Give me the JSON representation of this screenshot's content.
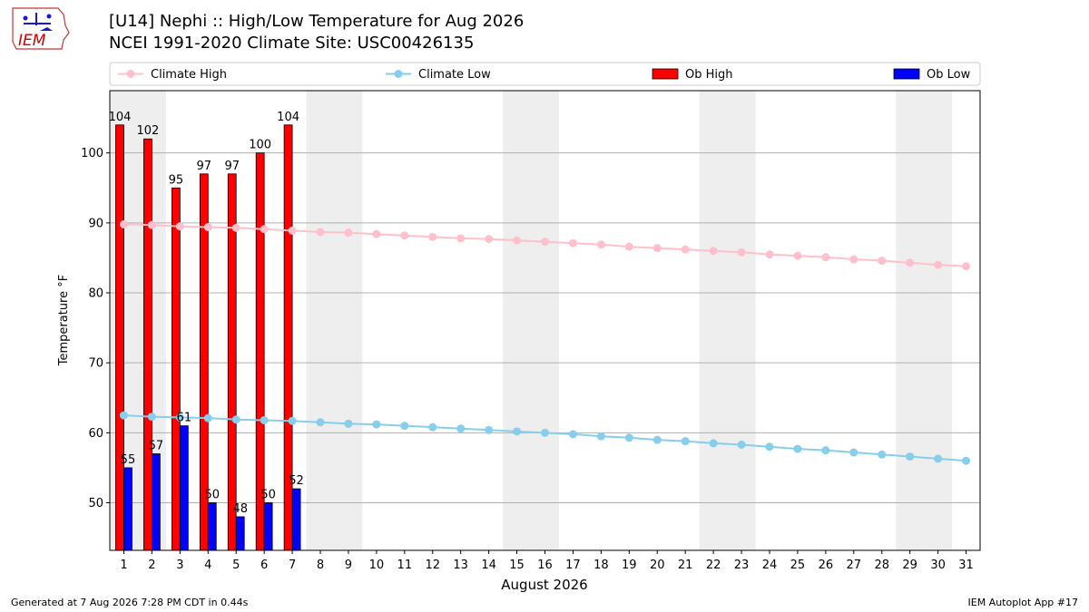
{
  "page": {
    "title_line1": "[U14] Nephi :: High/Low Temperature for Aug 2026",
    "title_line2": "NCEI 1991-2020 Climate Site: USC00426135",
    "footer_left": "Generated at 7 Aug 2026 7:28 PM CDT in 0.44s",
    "footer_right": "IEM Autoplot App #17",
    "logo_text": "IEM"
  },
  "chart_data": {
    "type": "bar",
    "xlabel": "August 2026",
    "ylabel": "Temperature °F",
    "x": [
      1,
      2,
      3,
      4,
      5,
      6,
      7,
      8,
      9,
      10,
      11,
      12,
      13,
      14,
      15,
      16,
      17,
      18,
      19,
      20,
      21,
      22,
      23,
      24,
      25,
      26,
      27,
      28,
      29,
      30,
      31
    ],
    "xlim": [
      0.5,
      31.5
    ],
    "ylim": [
      43.2,
      108.9
    ],
    "yticks": [
      50,
      60,
      70,
      80,
      90,
      100
    ],
    "grid": "horizontal",
    "weekend_shading_days": [
      1,
      2,
      8,
      9,
      15,
      16,
      22,
      23,
      29,
      30
    ],
    "legend_position": "top",
    "series": [
      {
        "name": "Climate High",
        "kind": "line",
        "color": "#ffc0cb",
        "values": [
          89.8,
          89.7,
          89.5,
          89.4,
          89.3,
          89.1,
          88.9,
          88.7,
          88.6,
          88.4,
          88.2,
          88.0,
          87.8,
          87.7,
          87.5,
          87.3,
          87.1,
          86.9,
          86.6,
          86.4,
          86.2,
          86.0,
          85.8,
          85.5,
          85.3,
          85.1,
          84.8,
          84.6,
          84.3,
          84.0,
          83.8
        ]
      },
      {
        "name": "Climate Low",
        "kind": "line",
        "color": "#87ceeb",
        "values": [
          62.5,
          62.3,
          62.2,
          62.1,
          61.9,
          61.8,
          61.7,
          61.5,
          61.3,
          61.2,
          61.0,
          60.8,
          60.6,
          60.4,
          60.2,
          60.0,
          59.8,
          59.5,
          59.3,
          59.0,
          58.8,
          58.5,
          58.3,
          58.0,
          57.7,
          57.5,
          57.2,
          56.9,
          56.6,
          56.3,
          56.0
        ]
      },
      {
        "name": "Ob High",
        "kind": "bar",
        "color": "#ff0000",
        "x": [
          1,
          2,
          3,
          4,
          5,
          6,
          7
        ],
        "values": [
          104,
          102,
          95,
          97,
          97,
          100,
          104
        ]
      },
      {
        "name": "Ob Low",
        "kind": "bar",
        "color": "#0000ff",
        "x": [
          1,
          2,
          3,
          4,
          5,
          6,
          7
        ],
        "values": [
          55,
          57,
          61,
          50,
          48,
          50,
          52
        ]
      }
    ]
  }
}
